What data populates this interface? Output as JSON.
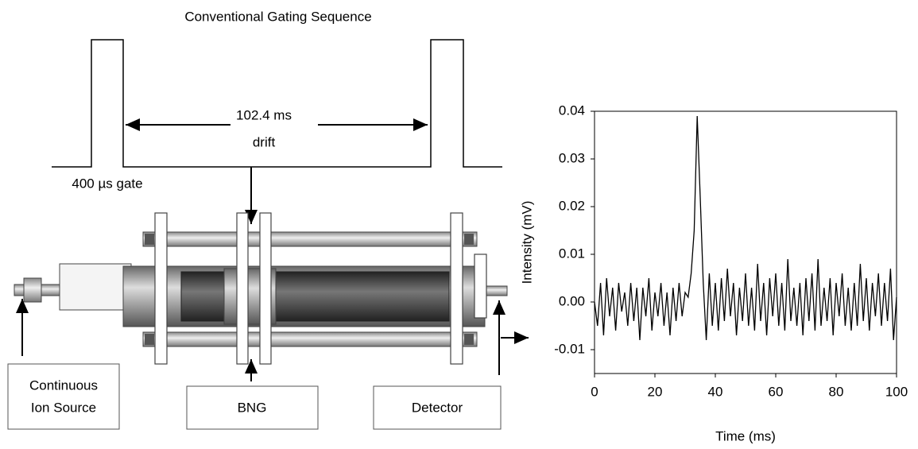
{
  "diagram": {
    "title": "Conventional Gating Sequence",
    "drift_time": "102.4 ms",
    "drift_label": "drift",
    "gate_label": "400 µs gate",
    "boxes": [
      {
        "lines": [
          "Continuous",
          "Ion Source"
        ]
      },
      {
        "lines": [
          "BNG"
        ]
      },
      {
        "lines": [
          "Detector"
        ]
      }
    ]
  },
  "chart_data": {
    "type": "line",
    "xlabel": "Time (ms)",
    "ylabel": "Intensity (mV)",
    "color": "#000000",
    "x": [
      0,
      1,
      2,
      3,
      4,
      5,
      6,
      7,
      8,
      9,
      10,
      11,
      12,
      13,
      14,
      15,
      16,
      17,
      18,
      19,
      20,
      21,
      22,
      23,
      24,
      25,
      26,
      27,
      28,
      29,
      30,
      31,
      32,
      33,
      34,
      35,
      36,
      37,
      38,
      39,
      40,
      41,
      42,
      43,
      44,
      45,
      46,
      47,
      48,
      49,
      50,
      51,
      52,
      53,
      54,
      55,
      56,
      57,
      58,
      59,
      60,
      61,
      62,
      63,
      64,
      65,
      66,
      67,
      68,
      69,
      70,
      71,
      72,
      73,
      74,
      75,
      76,
      77,
      78,
      79,
      80,
      81,
      82,
      83,
      84,
      85,
      86,
      87,
      88,
      89,
      90,
      91,
      92,
      93,
      94,
      95,
      96,
      97,
      98,
      99,
      100
    ],
    "values": [
      0.0,
      -0.005,
      0.004,
      -0.007,
      0.005,
      -0.003,
      0.003,
      -0.006,
      0.004,
      -0.002,
      0.002,
      -0.005,
      0.004,
      -0.004,
      0.003,
      -0.008,
      0.003,
      -0.003,
      0.005,
      -0.006,
      0.002,
      -0.003,
      0.004,
      -0.005,
      0.002,
      -0.007,
      0.003,
      -0.004,
      0.004,
      -0.003,
      0.002,
      0.001,
      0.006,
      0.015,
      0.039,
      0.022,
      0.004,
      -0.008,
      0.006,
      -0.005,
      0.004,
      -0.006,
      0.005,
      -0.004,
      0.007,
      -0.003,
      0.004,
      -0.007,
      0.003,
      -0.004,
      0.006,
      -0.005,
      0.003,
      -0.006,
      0.008,
      -0.004,
      0.004,
      -0.007,
      0.005,
      -0.003,
      0.006,
      -0.005,
      0.004,
      -0.006,
      0.009,
      -0.004,
      0.003,
      -0.005,
      0.004,
      -0.007,
      0.005,
      -0.004,
      0.006,
      -0.006,
      0.009,
      -0.005,
      0.003,
      -0.004,
      0.005,
      -0.007,
      0.004,
      -0.003,
      0.006,
      -0.005,
      0.003,
      -0.006,
      0.004,
      -0.005,
      0.008,
      -0.004,
      0.005,
      -0.006,
      0.004,
      -0.003,
      0.006,
      -0.005,
      0.004,
      -0.004,
      0.007,
      -0.008,
      0.001
    ],
    "xlim": [
      0,
      100
    ],
    "xticks": [
      0,
      20,
      40,
      60,
      80,
      100
    ],
    "ylim": [
      -0.015,
      0.04
    ],
    "yticks": [
      -0.01,
      {
        "value": 0,
        "label": "0.00"
      },
      0.01,
      0.02,
      0.03,
      0.04
    ]
  }
}
